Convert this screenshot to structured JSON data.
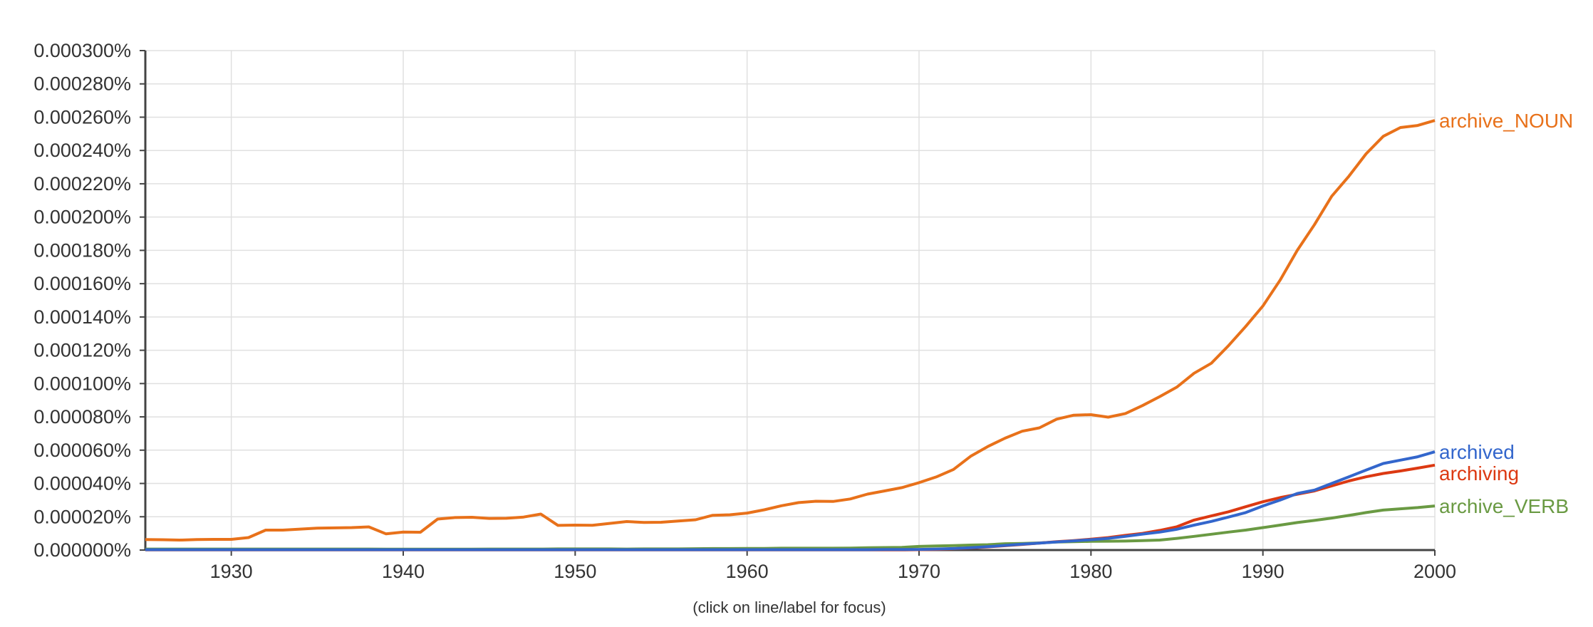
{
  "chart_data": {
    "type": "line",
    "x_range": [
      1925,
      2000
    ],
    "y_range": [
      0,
      0.0003
    ],
    "y_tick_labels": [
      "0.000000%",
      "0.000020%",
      "0.000040%",
      "0.000060%",
      "0.000080%",
      "0.000100%",
      "0.000120%",
      "0.000140%",
      "0.000160%",
      "0.000180%",
      "0.000200%",
      "0.000220%",
      "0.000240%",
      "0.000260%",
      "0.000280%",
      "0.000300%"
    ],
    "x_tick_labels": [
      "1930",
      "1940",
      "1950",
      "1960",
      "1970",
      "1980",
      "1990",
      "2000"
    ],
    "grid": true,
    "legend": "labels at line ends (right)",
    "x": [
      1925,
      1926,
      1927,
      1928,
      1929,
      1930,
      1931,
      1932,
      1933,
      1934,
      1935,
      1936,
      1937,
      1938,
      1939,
      1940,
      1941,
      1942,
      1943,
      1944,
      1945,
      1946,
      1947,
      1948,
      1949,
      1950,
      1951,
      1952,
      1953,
      1954,
      1955,
      1956,
      1957,
      1958,
      1959,
      1960,
      1961,
      1962,
      1963,
      1964,
      1965,
      1966,
      1967,
      1968,
      1969,
      1970,
      1971,
      1972,
      1973,
      1974,
      1975,
      1976,
      1977,
      1978,
      1979,
      1980,
      1981,
      1982,
      1983,
      1984,
      1985,
      1986,
      1987,
      1988,
      1989,
      1990,
      1991,
      1992,
      1993,
      1994,
      1995,
      1996,
      1997,
      1998,
      1999,
      2000
    ],
    "series": [
      {
        "name": "archive_NOUN",
        "color": "#e8711a",
        "values": [
          6.3e-06,
          6.2e-06,
          6e-06,
          6.3e-06,
          6.4e-06,
          6.4e-06,
          7.5e-06,
          1.2e-05,
          1.2e-05,
          1.26e-05,
          1.32e-05,
          1.33e-05,
          1.35e-05,
          1.39e-05,
          9.7e-06,
          1.08e-05,
          1.07e-05,
          1.86e-05,
          1.95e-05,
          1.97e-05,
          1.9e-05,
          1.91e-05,
          1.98e-05,
          2.16e-05,
          1.48e-05,
          1.5e-05,
          1.49e-05,
          1.6e-05,
          1.71e-05,
          1.66e-05,
          1.67e-05,
          1.74e-05,
          1.82e-05,
          2.09e-05,
          2.12e-05,
          2.22e-05,
          2.42e-05,
          2.66e-05,
          2.85e-05,
          2.93e-05,
          2.92e-05,
          3.07e-05,
          3.36e-05,
          3.55e-05,
          3.75e-05,
          4.05e-05,
          4.39e-05,
          4.84e-05,
          5.63e-05,
          6.22e-05,
          6.72e-05,
          7.14e-05,
          7.34e-05,
          7.86e-05,
          8.1e-05,
          8.13e-05,
          7.98e-05,
          8.2e-05,
          8.68e-05,
          9.22e-05,
          9.79e-05,
          0.0001062,
          0.0001122,
          0.0001228,
          0.0001343,
          0.0001466,
          0.0001621,
          0.00018,
          0.0001955,
          0.0002125,
          0.0002245,
          0.000238,
          0.0002485,
          0.0002538,
          0.000255,
          0.000258
        ]
      },
      {
        "name": "archived",
        "color": "#3366cc",
        "values": [
          2e-07,
          2e-07,
          2e-07,
          2e-07,
          2e-07,
          2e-07,
          2e-07,
          2e-07,
          2e-07,
          2e-07,
          2e-07,
          2e-07,
          2e-07,
          2e-07,
          2e-07,
          2e-07,
          2e-07,
          2e-07,
          2e-07,
          2e-07,
          2e-07,
          2e-07,
          2e-07,
          2e-07,
          2e-07,
          2e-07,
          2e-07,
          2e-07,
          2e-07,
          2e-07,
          2e-07,
          2e-07,
          2e-07,
          2e-07,
          2e-07,
          2e-07,
          2e-07,
          2e-07,
          2e-07,
          2e-07,
          2e-07,
          2e-07,
          2e-07,
          3e-07,
          3e-07,
          4e-07,
          6e-07,
          9e-07,
          1.4e-06,
          2e-06,
          2.8e-06,
          3.5e-06,
          4.2e-06,
          4.9e-06,
          5.5e-06,
          6.2e-06,
          7e-06,
          8.2e-06,
          9.6e-06,
          1.08e-05,
          1.25e-05,
          1.5e-05,
          1.72e-05,
          1.98e-05,
          2.25e-05,
          2.65e-05,
          3e-05,
          3.4e-05,
          3.6e-05,
          4e-05,
          4.4e-05,
          4.8e-05,
          5.2e-05,
          5.4e-05,
          5.6e-05,
          5.9e-05
        ]
      },
      {
        "name": "archiving",
        "color": "#dc3912",
        "values": [
          1e-07,
          1e-07,
          1e-07,
          1e-07,
          1e-07,
          1e-07,
          1e-07,
          1e-07,
          1e-07,
          1e-07,
          1e-07,
          1e-07,
          1e-07,
          1e-07,
          1e-07,
          1e-07,
          1e-07,
          1e-07,
          1e-07,
          1e-07,
          1e-07,
          1e-07,
          1e-07,
          1e-07,
          1e-07,
          1e-07,
          1e-07,
          1e-07,
          1e-07,
          1e-07,
          1e-07,
          1e-07,
          1e-07,
          1e-07,
          1e-07,
          1e-07,
          1e-07,
          1e-07,
          1e-07,
          1e-07,
          1e-07,
          1e-07,
          1e-07,
          1e-07,
          1e-07,
          2e-07,
          4e-07,
          8e-07,
          1.3e-06,
          1.9e-06,
          2.6e-06,
          3.4e-06,
          4.2e-06,
          5e-06,
          5.7e-06,
          6.5e-06,
          7.5e-06,
          8.8e-06,
          1e-05,
          1.18e-05,
          1.4e-05,
          1.8e-05,
          2.05e-05,
          2.3e-05,
          2.6e-05,
          2.9e-05,
          3.15e-05,
          3.35e-05,
          3.55e-05,
          3.85e-05,
          4.15e-05,
          4.4e-05,
          4.6e-05,
          4.75e-05,
          4.92e-05,
          5.1e-05
        ]
      },
      {
        "name": "archive_VERB",
        "color": "#6a9a43",
        "values": [
          6e-07,
          6e-07,
          6e-07,
          6e-07,
          6e-07,
          6e-07,
          6e-07,
          6e-07,
          6e-07,
          6e-07,
          6e-07,
          6e-07,
          6e-07,
          6e-07,
          5e-07,
          5e-07,
          5e-07,
          5e-07,
          5e-07,
          5e-07,
          6e-07,
          6e-07,
          6e-07,
          6e-07,
          7e-07,
          7e-07,
          7e-07,
          7e-07,
          6e-07,
          7e-07,
          7e-07,
          7e-07,
          8e-07,
          9e-07,
          9e-07,
          1e-06,
          1e-06,
          1.1e-06,
          1.1e-06,
          1.1e-06,
          1.1e-06,
          1.2e-06,
          1.4e-06,
          1.5e-06,
          1.6e-06,
          2.2e-06,
          2.5e-06,
          2.7e-06,
          3e-06,
          3.2e-06,
          3.8e-06,
          4e-06,
          4.3e-06,
          4.8e-06,
          5e-06,
          5.2e-06,
          5.3e-06,
          5.4e-06,
          5.7e-06,
          6e-06,
          7e-06,
          8.2e-06,
          9.5e-06,
          1.08e-05,
          1.2e-05,
          1.35e-05,
          1.5e-05,
          1.65e-05,
          1.78e-05,
          1.92e-05,
          2.08e-05,
          2.25e-05,
          2.4e-05,
          2.48e-05,
          2.55e-05,
          2.65e-05
        ]
      }
    ],
    "note": "(click on line/label for focus)"
  }
}
